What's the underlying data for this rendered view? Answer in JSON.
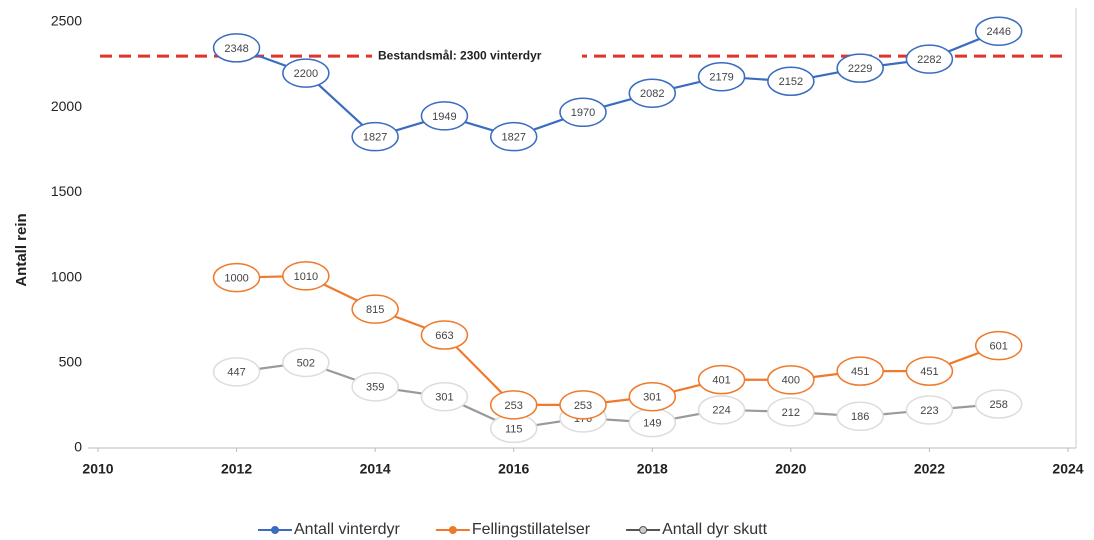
{
  "chart_data": {
    "type": "line",
    "y_label": "Antall rein",
    "x": [
      2012,
      2013,
      2014,
      2015,
      2016,
      2017,
      2018,
      2019,
      2020,
      2021,
      2022,
      2023
    ],
    "xlim": [
      2010,
      2024
    ],
    "xticks": [
      2010,
      2012,
      2014,
      2016,
      2018,
      2020,
      2022,
      2024
    ],
    "ylim": [
      0,
      2500
    ],
    "yticks": [
      0,
      500,
      1000,
      1500,
      2000,
      2500
    ],
    "grid": false,
    "legend": "bottom",
    "reference_line": {
      "value": 2300,
      "label": "Bestandsmål: 2300 vinterdyr",
      "color": "#e0342a"
    },
    "series": [
      {
        "name": "Antall vinterdyr",
        "color": "#3a6cc0",
        "values": [
          2348,
          2200,
          1827,
          1949,
          1827,
          1970,
          2082,
          2179,
          2152,
          2229,
          2282,
          2446
        ]
      },
      {
        "name": "Fellingstillatelser",
        "color": "#f07a2c",
        "values": [
          1000,
          1010,
          815,
          663,
          253,
          253,
          301,
          401,
          400,
          451,
          451,
          601
        ]
      },
      {
        "name": "Antall dyr skutt",
        "color": "#9a9a9a",
        "values": [
          447,
          502,
          359,
          301,
          115,
          176,
          149,
          224,
          212,
          186,
          223,
          258
        ]
      }
    ]
  }
}
